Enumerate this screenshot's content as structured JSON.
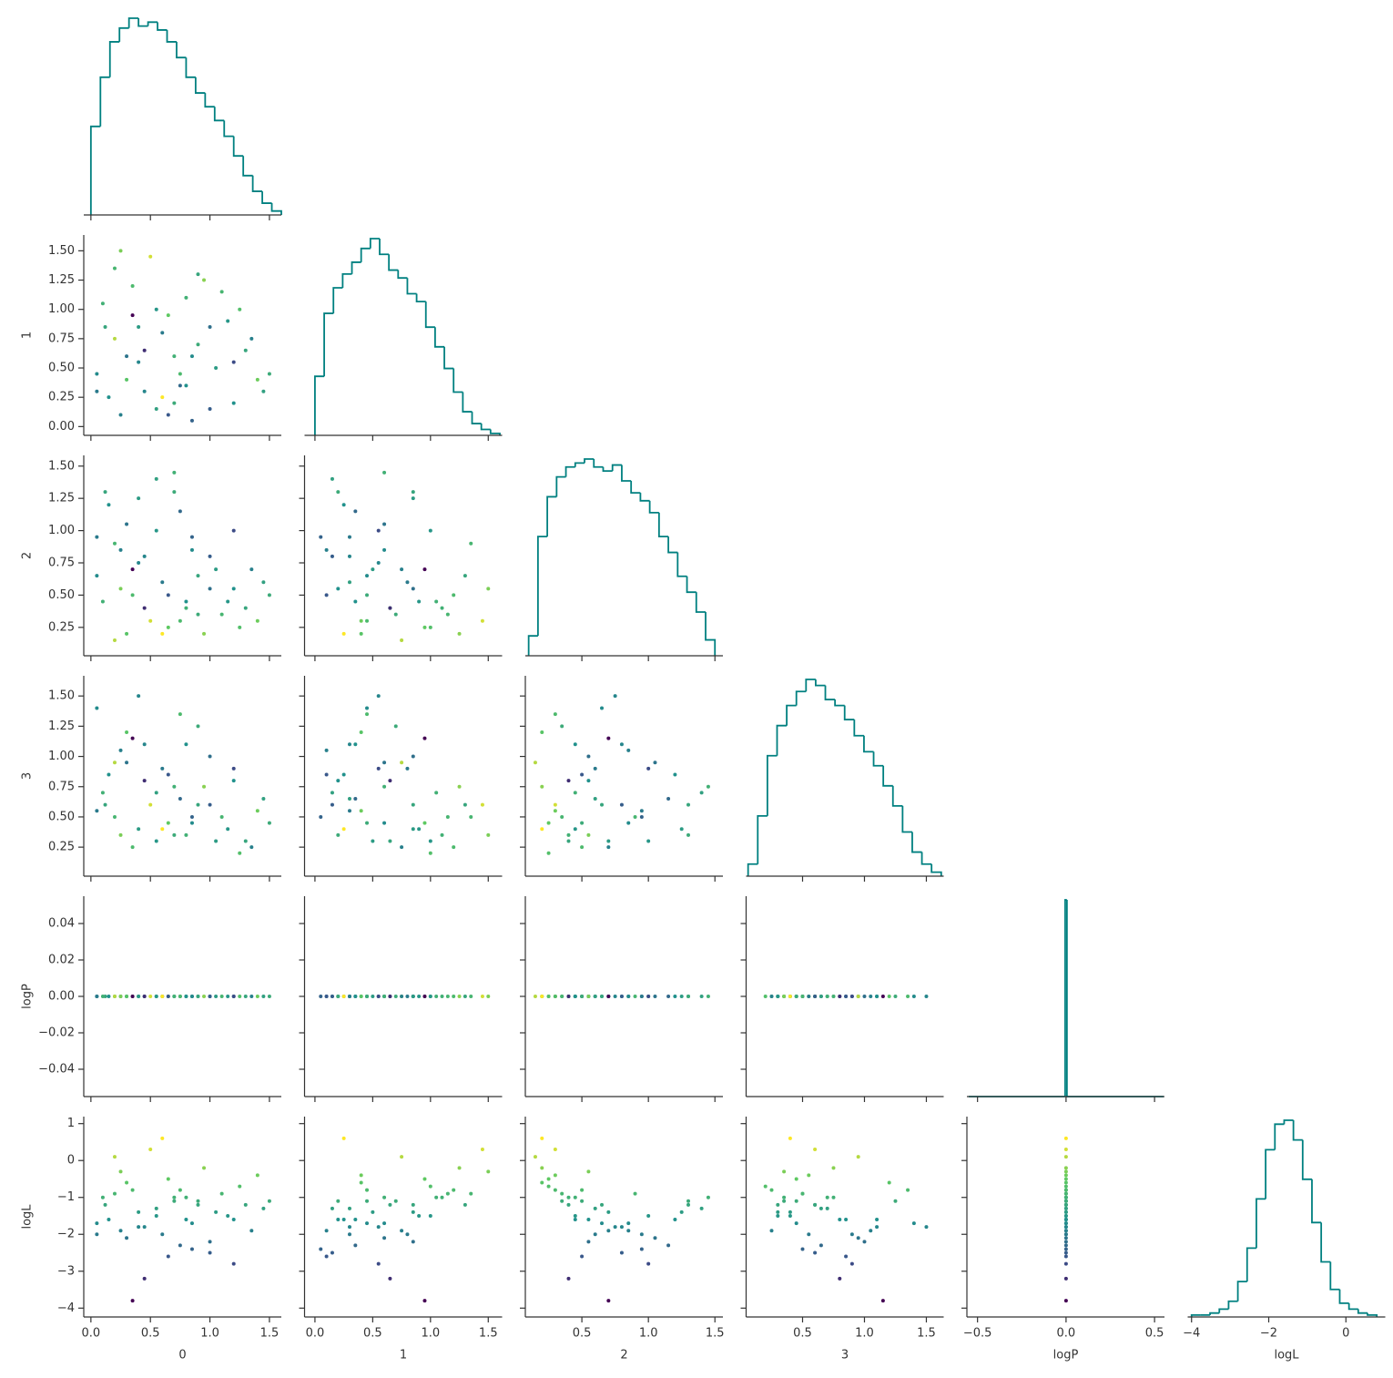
{
  "chart_data": {
    "type": "corner",
    "variables": [
      "0",
      "1",
      "2",
      "3",
      "logP",
      "logL"
    ],
    "color_by": "logL",
    "colormap": [
      "#440154",
      "#3b528b",
      "#21918c",
      "#5ec962",
      "#fde725"
    ],
    "hist_color": "#008080",
    "axes": [
      {
        "xlim": [
          -0.06,
          1.6
        ],
        "xticks": [
          {
            "value": 0,
            "label": "0.0"
          },
          0.5,
          {
            "value": 1,
            "label": "1.0"
          },
          1.5
        ]
      },
      {
        "xlim": [
          -0.09,
          1.62
        ],
        "xticks": [
          {
            "value": 0,
            "label": "0.0"
          },
          0.5,
          {
            "value": 1,
            "label": "1.0"
          },
          1.5
        ],
        "ylim": [
          -0.075,
          1.635
        ],
        "yticks": [
          {
            "value": 0,
            "label": "0.00"
          },
          {
            "value": 0.25,
            "label": "0.25"
          },
          {
            "value": 0.5,
            "label": "0.50"
          },
          {
            "value": 0.75,
            "label": "0.75"
          },
          {
            "value": 1,
            "label": "1.00"
          },
          {
            "value": 1.25,
            "label": "1.25"
          },
          {
            "value": 1.5,
            "label": "1.50"
          }
        ]
      },
      {
        "xlim": [
          0.075,
          1.56
        ],
        "xticks": [
          0.5,
          {
            "value": 1,
            "label": "1.0"
          },
          1.5
        ],
        "ylim": [
          0.03,
          1.583
        ],
        "yticks": [
          {
            "value": 0.25,
            "label": "0.25"
          },
          {
            "value": 0.5,
            "label": "0.50"
          },
          {
            "value": 0.75,
            "label": "0.75"
          },
          {
            "value": 1,
            "label": "1.00"
          },
          {
            "value": 1.25,
            "label": "1.25"
          },
          {
            "value": 1.5,
            "label": "1.50"
          }
        ]
      },
      {
        "xlim": [
          0.044,
          1.64
        ],
        "xticks": [
          0.5,
          {
            "value": 1,
            "label": "1.0"
          },
          1.5
        ],
        "ylim": [
          0.01,
          1.667
        ],
        "yticks": [
          {
            "value": 0.25,
            "label": "0.25"
          },
          {
            "value": 0.5,
            "label": "0.50"
          },
          {
            "value": 0.75,
            "label": "0.75"
          },
          {
            "value": 1,
            "label": "1.00"
          },
          {
            "value": 1.25,
            "label": "1.25"
          },
          {
            "value": 1.5,
            "label": "1.50"
          }
        ]
      },
      {
        "xlim": [
          -0.56,
          0.556
        ],
        "xticks": [
          {
            "value": -0.5,
            "label": "−0.5"
          },
          {
            "value": 0,
            "label": "0.0"
          },
          0.5
        ],
        "ylim": [
          -0.055,
          0.055
        ],
        "yticks": [
          {
            "value": -0.04,
            "label": "−0.04"
          },
          {
            "value": -0.02,
            "label": "−0.02"
          },
          {
            "value": 0,
            "label": "0.00"
          },
          0.02,
          0.04
        ]
      },
      {
        "xlim": [
          -4.1,
          1.02
        ],
        "xticks": [
          {
            "value": -4,
            "label": "−4"
          },
          {
            "value": -2,
            "label": "−2"
          },
          0
        ],
        "ylim": [
          -4.24,
          1.19
        ],
        "yticks": [
          {
            "value": -4,
            "label": "−4"
          },
          {
            "value": -3,
            "label": "−3"
          },
          {
            "value": -2,
            "label": "−2"
          },
          {
            "value": -1,
            "label": "−1"
          },
          0,
          1
        ]
      }
    ],
    "hists": [
      {
        "bins": [
          0,
          0.08,
          0.16,
          0.24,
          0.32,
          0.4,
          0.48,
          0.56,
          0.64,
          0.72,
          0.8,
          0.88,
          0.96,
          1.04,
          1.12,
          1.2,
          1.28,
          1.36,
          1.44,
          1.52,
          1.6
        ],
        "counts": [
          45,
          70,
          88,
          95,
          100,
          96,
          98,
          94,
          88,
          80,
          70,
          62,
          55,
          48,
          40,
          30,
          20,
          12,
          6,
          2
        ]
      },
      {
        "bins": [
          0,
          0.08,
          0.16,
          0.24,
          0.32,
          0.4,
          0.48,
          0.56,
          0.64,
          0.72,
          0.8,
          0.88,
          0.96,
          1.04,
          1.12,
          1.2,
          1.28,
          1.36,
          1.44,
          1.52,
          1.6
        ],
        "counts": [
          30,
          62,
          75,
          82,
          88,
          95,
          100,
          92,
          84,
          80,
          72,
          68,
          55,
          45,
          34,
          22,
          12,
          6,
          3,
          1
        ]
      },
      {
        "bins": [
          0.1,
          0.17,
          0.24,
          0.31,
          0.38,
          0.45,
          0.52,
          0.59,
          0.66,
          0.73,
          0.8,
          0.87,
          0.94,
          1.01,
          1.08,
          1.15,
          1.22,
          1.29,
          1.36,
          1.43,
          1.5
        ],
        "counts": [
          10,
          60,
          80,
          90,
          95,
          97,
          99,
          95,
          93,
          96,
          88,
          82,
          78,
          72,
          60,
          52,
          40,
          32,
          22,
          8
        ]
      },
      {
        "bins": [
          0.06,
          0.138,
          0.216,
          0.294,
          0.372,
          0.45,
          0.528,
          0.606,
          0.684,
          0.762,
          0.84,
          0.918,
          0.996,
          1.074,
          1.152,
          1.23,
          1.308,
          1.386,
          1.464,
          1.542,
          1.62
        ],
        "counts": [
          6,
          30,
          60,
          75,
          85,
          92,
          98,
          95,
          88,
          85,
          78,
          70,
          62,
          55,
          45,
          35,
          22,
          12,
          6,
          2
        ]
      },
      {
        "bins": [
          -0.55,
          -0.005,
          0.005,
          0.55
        ],
        "counts": [
          0,
          100,
          0
        ]
      },
      {
        "bins": [
          -4,
          -3.76,
          -3.52,
          -3.28,
          -3.04,
          -2.8,
          -2.56,
          -2.32,
          -2.08,
          -1.84,
          -1.6,
          -1.36,
          -1.12,
          -0.88,
          -0.64,
          -0.4,
          -0.16,
          0.08,
          0.32,
          0.56,
          0.8
        ],
        "counts": [
          1,
          1,
          2,
          4,
          8,
          18,
          35,
          60,
          85,
          98,
          100,
          90,
          70,
          48,
          28,
          14,
          7,
          4,
          2,
          1
        ]
      }
    ],
    "samples": [
      [
        0.12,
        0.45,
        0.8,
        1.2,
        0.3,
        0.65,
        1.05,
        0.2,
        0.55,
        0.9,
        1.4,
        0.05,
        0.35,
        0.75,
        1.15,
        0.25,
        0.6,
        0.95,
        1.3,
        0.15,
        0.5,
        0.85,
        1.25,
        0.4,
        0.7,
        1.0,
        0.1,
        0.3,
        0.85,
        1.45,
        0.55,
        0.2,
        0.65,
        1.1,
        0.4,
        0.75,
        1.35,
        0.05,
        0.9,
        0.45,
        0.6,
        1.2,
        0.25,
        0.8,
        1.0,
        0.35,
        0.7,
        1.5
      ],
      [
        0.85,
        0.3,
        1.1,
        0.2,
        0.6,
        0.95,
        0.5,
        1.35,
        0.15,
        0.7,
        0.4,
        0.45,
        1.2,
        0.35,
        0.9,
        0.1,
        0.8,
        1.25,
        0.65,
        0.25,
        1.45,
        0.05,
        1.0,
        0.55,
        0.2,
        0.85,
        1.05,
        0.4,
        0.6,
        0.3,
        1.0,
        0.75,
        0.1,
        1.15,
        0.85,
        0.45,
        0.75,
        0.3,
        1.3,
        0.65,
        0.25,
        0.55,
        1.5,
        0.35,
        0.15,
        0.95,
        0.6,
        0.45
      ],
      [
        1.3,
        0.8,
        0.4,
        0.55,
        1.05,
        0.25,
        0.7,
        0.9,
        1.4,
        0.35,
        0.3,
        0.65,
        0.5,
        1.15,
        0.45,
        0.85,
        0.6,
        0.2,
        0.4,
        1.2,
        0.3,
        0.95,
        0.25,
        0.75,
        1.3,
        0.55,
        0.45,
        0.2,
        0.85,
        0.6,
        1.0,
        0.15,
        0.5,
        0.35,
        1.25,
        0.3,
        0.7,
        0.95,
        0.65,
        0.4,
        0.2,
        1.0,
        0.55,
        0.45,
        0.8,
        0.7,
        1.45,
        0.5
      ],
      [
        0.6,
        1.1,
        0.35,
        0.8,
        0.95,
        0.45,
        0.3,
        0.5,
        0.7,
        1.25,
        0.55,
        1.4,
        0.25,
        0.65,
        0.4,
        1.05,
        0.9,
        0.75,
        0.3,
        0.85,
        0.6,
        0.5,
        0.2,
        1.5,
        0.35,
        1.0,
        0.7,
        1.2,
        0.45,
        0.65,
        0.3,
        0.95,
        0.85,
        0.5,
        0.4,
        1.35,
        0.25,
        0.55,
        0.6,
        0.8,
        0.4,
        0.9,
        0.35,
        1.1,
        0.6,
        1.15,
        0.75,
        0.45
      ],
      [
        0,
        0,
        0,
        0,
        0,
        0,
        0,
        0,
        0,
        0,
        0,
        0,
        0,
        0,
        0,
        0,
        0,
        0,
        0,
        0,
        0,
        0,
        0,
        0,
        0,
        0,
        0,
        0,
        0,
        0,
        0,
        0,
        0,
        0,
        0,
        0,
        0,
        0,
        0,
        0,
        0,
        0,
        0,
        0,
        0,
        0,
        0,
        0
      ],
      [
        -1.2,
        -1.8,
        -1.0,
        -1.6,
        -2.1,
        -0.5,
        -1.4,
        -0.9,
        -1.3,
        -1.1,
        -0.4,
        -1.7,
        -0.8,
        -2.3,
        -1.5,
        -1.9,
        -2.0,
        -0.2,
        -1.2,
        -1.6,
        0.3,
        -2.4,
        -0.7,
        -1.8,
        -1.1,
        -2.2,
        -1.0,
        -0.6,
        -1.7,
        -1.3,
        -1.5,
        0.1,
        -2.6,
        -0.9,
        -1.4,
        -0.8,
        -1.9,
        -2.0,
        -1.2,
        -3.2,
        0.6,
        -2.8,
        -0.3,
        -1.6,
        -2.5,
        -3.8,
        -1.0,
        -1.1
      ]
    ]
  }
}
